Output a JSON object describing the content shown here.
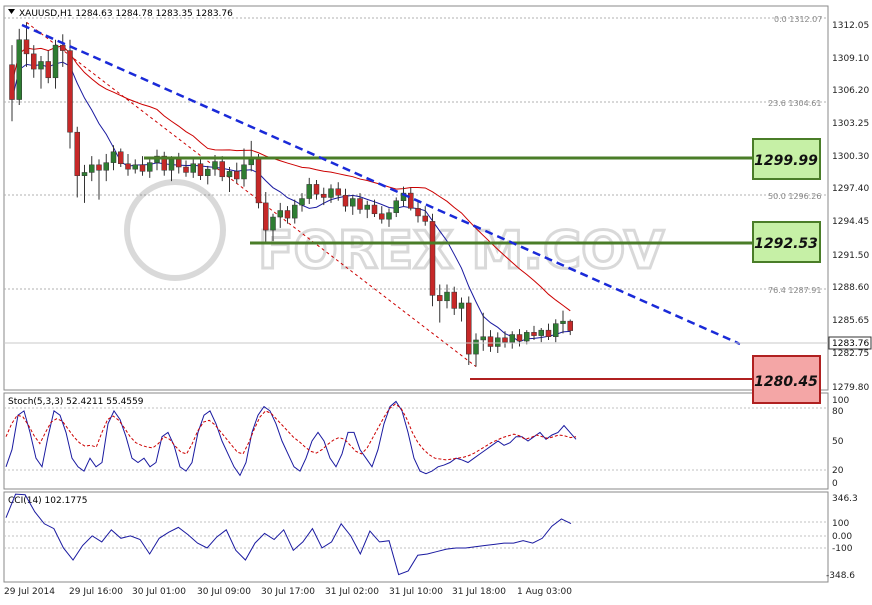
{
  "header": {
    "symbol_label": "XAUUSD,H1",
    "ohlc": [
      "1284.63",
      "1284.78",
      "1283.35",
      "1283.76"
    ]
  },
  "watermark": "FOREX M.COV",
  "colors": {
    "bull": "#2e7d32",
    "bear": "#c62828",
    "trendline": "#1a2ad8",
    "ma_red": "#cc0000",
    "ma_blue": "#1a1aa0",
    "support_box": "#f4a6a6",
    "resistance_box": "#c6f0a6",
    "stoch_main": "#1a1aa0",
    "stoch_signal": "#cc0000"
  },
  "chart_data": [
    {
      "type": "candlestick",
      "title": "XAUUSD,H1",
      "ylim": [
        1278.3,
        1313.6
      ],
      "y_ticks": [
        "1312.05",
        "1309.10",
        "1306.20",
        "1303.25",
        "1300.30",
        "1297.40",
        "1294.45",
        "1291.50",
        "1288.60",
        "1285.65",
        "1282.75",
        "1279.80"
      ],
      "current_price": "1283.76",
      "fib_levels": [
        {
          "label": "0.0",
          "value": "1312.07"
        },
        {
          "label": "23.6",
          "value": "1304.61"
        },
        {
          "label": "50.0",
          "value": "1296.26"
        },
        {
          "label": "76.4",
          "value": "1287.91"
        }
      ],
      "levels": [
        {
          "kind": "resistance",
          "value": "1299.99"
        },
        {
          "kind": "resistance",
          "value": "1292.53"
        },
        {
          "kind": "support",
          "value": "1280.45"
        }
      ],
      "trendline": {
        "from": [
          2,
          1312.1
        ],
        "to": [
          117,
          1283.4
        ]
      },
      "candles": [
        [
          1308.2,
          1310.0,
          1303.0,
          1305.0
        ],
        [
          1305.0,
          1311.5,
          1304.5,
          1310.5
        ],
        [
          1310.5,
          1312.1,
          1308.0,
          1309.2
        ],
        [
          1309.2,
          1310.0,
          1307.0,
          1307.8
        ],
        [
          1307.8,
          1309.0,
          1306.0,
          1308.5
        ],
        [
          1308.5,
          1309.5,
          1306.5,
          1307.0
        ],
        [
          1307.0,
          1310.5,
          1306.0,
          1310.0
        ],
        [
          1310.0,
          1311.0,
          1308.0,
          1309.5
        ],
        [
          1309.5,
          1310.5,
          1300.5,
          1302.0
        ],
        [
          1302.0,
          1302.5,
          1296.0,
          1298.0
        ],
        [
          1298.0,
          1299.0,
          1295.5,
          1298.3
        ],
        [
          1298.3,
          1299.8,
          1297.5,
          1299.0
        ],
        [
          1299.0,
          1299.5,
          1295.8,
          1298.5
        ],
        [
          1298.5,
          1300.0,
          1297.5,
          1299.2
        ],
        [
          1299.2,
          1300.8,
          1298.5,
          1300.2
        ],
        [
          1300.2,
          1300.5,
          1298.8,
          1299.1
        ],
        [
          1299.1,
          1300.0,
          1298.0,
          1298.6
        ],
        [
          1298.6,
          1299.5,
          1298.2,
          1299.0
        ],
        [
          1299.0,
          1299.8,
          1298.0,
          1298.4
        ],
        [
          1298.4,
          1299.6,
          1297.8,
          1299.2
        ],
        [
          1299.2,
          1300.4,
          1298.5,
          1299.8
        ],
        [
          1299.8,
          1300.2,
          1298.0,
          1298.5
        ],
        [
          1298.5,
          1299.8,
          1297.5,
          1299.5
        ],
        [
          1299.5,
          1300.1,
          1298.2,
          1298.8
        ],
        [
          1298.8,
          1299.4,
          1297.9,
          1298.3
        ],
        [
          1298.3,
          1299.7,
          1297.8,
          1299.1
        ],
        [
          1299.1,
          1299.6,
          1297.6,
          1298.0
        ],
        [
          1298.0,
          1298.9,
          1297.2,
          1298.6
        ],
        [
          1298.6,
          1299.9,
          1298.0,
          1299.3
        ],
        [
          1299.3,
          1299.8,
          1297.5,
          1297.9
        ],
        [
          1297.9,
          1298.8,
          1296.5,
          1298.4
        ],
        [
          1298.4,
          1299.2,
          1297.3,
          1297.7
        ],
        [
          1297.7,
          1300.5,
          1297.0,
          1299.0
        ],
        [
          1299.0,
          1301.2,
          1298.4,
          1299.5
        ],
        [
          1299.5,
          1300.0,
          1295.0,
          1295.5
        ],
        [
          1295.5,
          1296.5,
          1291.8,
          1293.0
        ],
        [
          1293.0,
          1294.5,
          1292.0,
          1294.2
        ],
        [
          1294.2,
          1295.5,
          1293.2,
          1294.8
        ],
        [
          1294.8,
          1295.2,
          1293.6,
          1294.1
        ],
        [
          1294.1,
          1295.8,
          1293.6,
          1295.3
        ],
        [
          1295.3,
          1296.4,
          1294.7,
          1295.9
        ],
        [
          1295.9,
          1297.8,
          1295.4,
          1297.2
        ],
        [
          1297.2,
          1297.6,
          1295.8,
          1296.3
        ],
        [
          1296.3,
          1296.9,
          1295.3,
          1296.0
        ],
        [
          1296.0,
          1297.2,
          1295.5,
          1296.8
        ],
        [
          1296.8,
          1297.4,
          1295.7,
          1296.2
        ],
        [
          1296.2,
          1296.8,
          1294.7,
          1295.2
        ],
        [
          1295.2,
          1296.2,
          1294.4,
          1295.9
        ],
        [
          1295.9,
          1296.4,
          1294.5,
          1294.9
        ],
        [
          1294.9,
          1295.7,
          1294.1,
          1295.3
        ],
        [
          1295.3,
          1295.8,
          1294.2,
          1294.5
        ],
        [
          1294.5,
          1295.2,
          1293.6,
          1294.0
        ],
        [
          1294.0,
          1295.0,
          1293.3,
          1294.6
        ],
        [
          1294.6,
          1296.0,
          1294.2,
          1295.7
        ],
        [
          1295.7,
          1297.0,
          1295.2,
          1296.4
        ],
        [
          1296.4,
          1296.9,
          1294.8,
          1295.0
        ],
        [
          1295.0,
          1295.7,
          1293.7,
          1294.3
        ],
        [
          1294.3,
          1295.2,
          1293.4,
          1293.8
        ],
        [
          1293.8,
          1294.5,
          1286.0,
          1287.0
        ],
        [
          1287.0,
          1288.0,
          1284.5,
          1286.5
        ],
        [
          1286.5,
          1288.0,
          1285.8,
          1287.3
        ],
        [
          1287.3,
          1287.8,
          1285.2,
          1285.8
        ],
        [
          1285.8,
          1286.8,
          1284.6,
          1286.3
        ],
        [
          1286.3,
          1286.9,
          1280.6,
          1281.6
        ],
        [
          1281.6,
          1283.5,
          1280.45,
          1282.9
        ],
        [
          1282.9,
          1285.4,
          1281.9,
          1283.2
        ],
        [
          1283.2,
          1283.8,
          1281.8,
          1282.3
        ],
        [
          1282.3,
          1283.6,
          1281.7,
          1283.1
        ],
        [
          1283.1,
          1283.7,
          1282.2,
          1282.7
        ],
        [
          1282.7,
          1283.7,
          1282.1,
          1283.4
        ],
        [
          1283.4,
          1283.9,
          1282.3,
          1282.8
        ],
        [
          1282.8,
          1283.8,
          1282.5,
          1283.6
        ],
        [
          1283.6,
          1284.2,
          1282.9,
          1283.3
        ],
        [
          1283.3,
          1284.0,
          1282.7,
          1283.8
        ],
        [
          1283.8,
          1284.4,
          1282.9,
          1283.2
        ],
        [
          1283.2,
          1284.8,
          1282.7,
          1284.4
        ],
        [
          1284.4,
          1285.6,
          1283.5,
          1284.63
        ],
        [
          1284.63,
          1284.78,
          1283.35,
          1283.76
        ]
      ]
    },
    {
      "type": "line",
      "title": "Stoch(5,3,3) 52.4211 55.4559",
      "ylim": [
        0,
        100
      ],
      "y_ticks": [
        "100",
        "80",
        "50",
        "20",
        "0"
      ],
      "series": [
        {
          "values": [
            55,
            70,
            80,
            78,
            68,
            56,
            47,
            60,
            72,
            76,
            73,
            64,
            55,
            48,
            44,
            45,
            43,
            60,
            75,
            79,
            74,
            65,
            55,
            48,
            45,
            43,
            42,
            47,
            55,
            52,
            44,
            37,
            35,
            47,
            62,
            72,
            74,
            69,
            61,
            53,
            45,
            37,
            35,
            48,
            64,
            78,
            85,
            82,
            75,
            68,
            61,
            54,
            49,
            43,
            38,
            36,
            40,
            46,
            51,
            54,
            52,
            45,
            38,
            35,
            42,
            54,
            66,
            78,
            88,
            93,
            88,
            76,
            60,
            48,
            40,
            34,
            30,
            29,
            28,
            29,
            30,
            31,
            33,
            36,
            40,
            44,
            48,
            51,
            54,
            56,
            58,
            56,
            52,
            54,
            57,
            55,
            53,
            55,
            57,
            56,
            54,
            55
          ]
        },
        {
          "values": [
            20,
            40,
            80,
            85,
            60,
            30,
            20,
            55,
            85,
            80,
            60,
            30,
            20,
            15,
            30,
            20,
            25,
            70,
            85,
            75,
            55,
            30,
            25,
            30,
            20,
            25,
            55,
            60,
            45,
            20,
            15,
            25,
            60,
            80,
            85,
            70,
            50,
            35,
            20,
            10,
            25,
            60,
            80,
            90,
            85,
            70,
            50,
            35,
            20,
            15,
            30,
            50,
            60,
            50,
            30,
            20,
            35,
            60,
            60,
            40,
            30,
            20,
            40,
            70,
            90,
            96,
            85,
            60,
            30,
            15,
            12,
            15,
            20,
            22,
            25,
            30,
            28,
            25,
            30,
            35,
            40,
            45,
            50,
            45,
            48,
            55,
            55,
            50,
            55,
            60,
            52,
            57,
            60,
            68,
            60,
            52
          ]
        }
      ]
    },
    {
      "type": "line",
      "title": "CCI(14) 102.1775",
      "ylim": [
        -348.6,
        346.3
      ],
      "y_ticks": [
        "346.3",
        "100",
        "0.00",
        "-100",
        "-348.6"
      ],
      "series": [
        {
          "values": [
            150,
            345,
            340,
            200,
            100,
            60,
            -100,
            -200,
            -80,
            0,
            -50,
            50,
            -20,
            0,
            -30,
            -150,
            -20,
            30,
            70,
            10,
            -60,
            -100,
            -10,
            50,
            -120,
            -200,
            -60,
            20,
            -30,
            50,
            -120,
            -50,
            60,
            -100,
            -50,
            100,
            0,
            -150,
            40,
            -50,
            -40,
            -320,
            -290,
            -160,
            -150,
            -130,
            -110,
            -100,
            -100,
            -90,
            -80,
            -70,
            -60,
            -60,
            -40,
            -60,
            -20,
            80,
            140,
            102
          ]
        }
      ]
    }
  ],
  "x_axis": {
    "labels": [
      "29 Jul 2014",
      "29 Jul 16:00",
      "30 Jul 01:00",
      "30 Jul 09:00",
      "30 Jul 17:00",
      "31 Jul 02:00",
      "31 Jul 10:00",
      "31 Jul 18:00",
      "1 Aug 03:00"
    ]
  }
}
